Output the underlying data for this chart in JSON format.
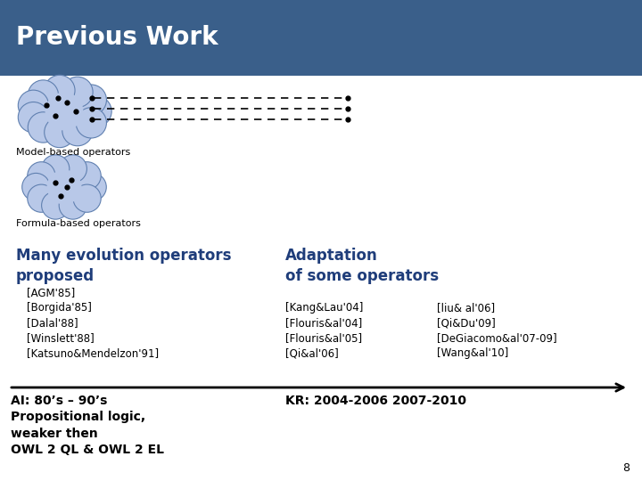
{
  "title": "Previous Work",
  "title_bg_color": "#3a5f8a",
  "title_text_color": "#ffffff",
  "slide_bg_color": "#ffffff",
  "model_label": "Model-based operators",
  "formula_label": "Formula-based operators",
  "heading1": "Many evolution operators\nproposed",
  "heading2": "Adaptation\nof some operators",
  "heading_color": "#1f3d7a",
  "col1_refs": [
    "[AGM'85]",
    "[Borgida'85]",
    "[Dalal'88]",
    "[Winslett'88]",
    "[Katsuno&Mendelzon'91]"
  ],
  "col2_refs_left": [
    "[Kang&Lau'04]",
    "[Flouris&al'04]",
    "[Flouris&al'05]",
    "[Qi&al'06]"
  ],
  "col2_refs_right": [
    "[liu& al'06]",
    "[Qi&Du'09]",
    "[DeGiacomo&al'07-09]",
    "[Wang&al'10]"
  ],
  "footer1": "AI: 80’s – 90’s\nPropositional logic,\nweaker then\nOWL 2 QL & OWL 2 EL",
  "footer2": "KR: 2004-2006 2007-2010",
  "page_number": "8",
  "ref_fontsize": 8.5,
  "heading_fontsize": 12,
  "footer_fontsize": 10,
  "cloud_color": "#b8c8e8",
  "cloud_border_color": "#6080b0"
}
